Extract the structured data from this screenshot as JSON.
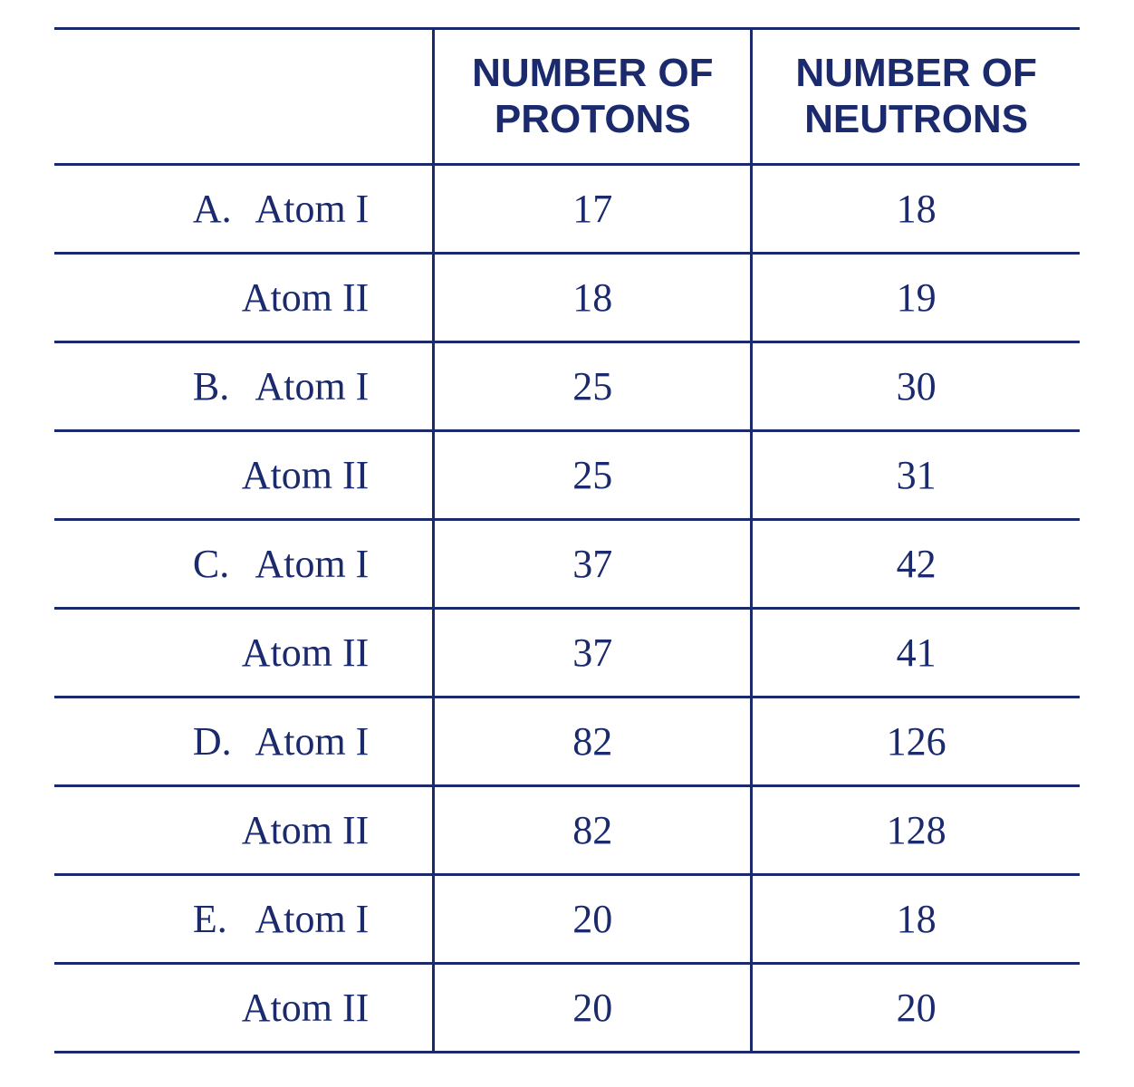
{
  "table": {
    "type": "table",
    "text_color": "#1a2a6c",
    "border_color": "#1a2a6c",
    "header_font_family": "Arial Narrow",
    "header_font_weight": 700,
    "header_font_size_pt": 33,
    "body_font_family": "Times New Roman",
    "body_font_size_pt": 33,
    "column_widths_pct": [
      37,
      31,
      32
    ],
    "columns": [
      "",
      "NUMBER OF\nPROTONS",
      "NUMBER OF\nNEUTRONS"
    ],
    "rows": [
      {
        "prefix": "A.",
        "label": "Atom I",
        "protons": "17",
        "neutrons": "18"
      },
      {
        "prefix": "",
        "label": "Atom II",
        "protons": "18",
        "neutrons": "19"
      },
      {
        "prefix": "B.",
        "label": "Atom I",
        "protons": "25",
        "neutrons": "30"
      },
      {
        "prefix": "",
        "label": "Atom II",
        "protons": "25",
        "neutrons": "31"
      },
      {
        "prefix": "C.",
        "label": "Atom I",
        "protons": "37",
        "neutrons": "42"
      },
      {
        "prefix": "",
        "label": "Atom II",
        "protons": "37",
        "neutrons": "41"
      },
      {
        "prefix": "D.",
        "label": "Atom I",
        "protons": "82",
        "neutrons": "126"
      },
      {
        "prefix": "",
        "label": "Atom II",
        "protons": "82",
        "neutrons": "128"
      },
      {
        "prefix": "E.",
        "label": "Atom I",
        "protons": "20",
        "neutrons": "18"
      },
      {
        "prefix": "",
        "label": "Atom II",
        "protons": "20",
        "neutrons": "20"
      }
    ]
  }
}
